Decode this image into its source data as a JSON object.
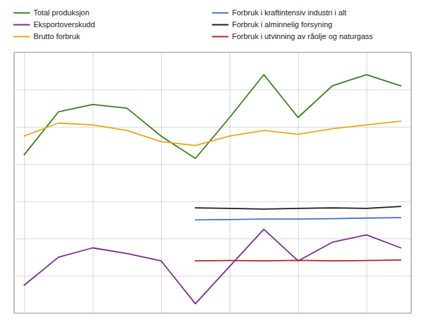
{
  "chart_data": {
    "type": "line",
    "series": [
      {
        "name": "Total produksjon",
        "color": "#3a7d1e",
        "x": [
          0,
          1,
          2,
          3,
          4,
          5,
          6,
          7,
          8,
          9,
          10,
          11
        ],
        "values": [
          8.5,
          10.8,
          11.2,
          11.0,
          9.5,
          8.3,
          10.5,
          12.8,
          10.5,
          12.2,
          12.8,
          12.2
        ]
      },
      {
        "name": "Eksportoverskudd",
        "color": "#7b2b8b",
        "x": [
          0,
          1,
          2,
          3,
          4,
          5,
          6,
          7,
          8,
          9,
          10,
          11
        ],
        "values": [
          1.5,
          3.0,
          3.5,
          3.2,
          2.8,
          0.5,
          2.5,
          4.5,
          2.8,
          3.8,
          4.2,
          3.5
        ]
      },
      {
        "name": "Brutto forbruk",
        "color": "#e6a817",
        "x": [
          0,
          1,
          2,
          3,
          4,
          5,
          6,
          7,
          8,
          9,
          10,
          11
        ],
        "values": [
          9.5,
          10.2,
          10.1,
          9.8,
          9.2,
          9.0,
          9.5,
          9.8,
          9.6,
          9.9,
          10.1,
          10.3
        ]
      },
      {
        "name": "Forbruk i kraftintensiv industri i alt",
        "color": "#4472c4",
        "x": [
          5,
          6,
          7,
          8,
          9,
          10,
          11
        ],
        "values": [
          5.0,
          5.02,
          5.05,
          5.05,
          5.07,
          5.1,
          5.12
        ]
      },
      {
        "name": "Forbruk i alminnelig forsyning",
        "color": "#1a1a1a",
        "x": [
          5,
          6,
          7,
          8,
          9,
          10,
          11
        ],
        "values": [
          5.65,
          5.62,
          5.58,
          5.62,
          5.65,
          5.62,
          5.72
        ]
      },
      {
        "name": "Forbruk i utvinning av råolje og naturgass",
        "color": "#b22222",
        "x": [
          5,
          6,
          7,
          8,
          9,
          10,
          11
        ],
        "values": [
          2.8,
          2.82,
          2.8,
          2.83,
          2.8,
          2.82,
          2.85
        ]
      }
    ],
    "xlim": [
      -0.3,
      11.3
    ],
    "ylim": [
      0,
      14
    ],
    "xticks": [
      0,
      2,
      4,
      6,
      8,
      10
    ],
    "yticks": [
      0,
      2,
      4,
      6,
      8,
      10,
      12,
      14
    ],
    "grid": true,
    "legend": "top",
    "tick_labels": false
  }
}
